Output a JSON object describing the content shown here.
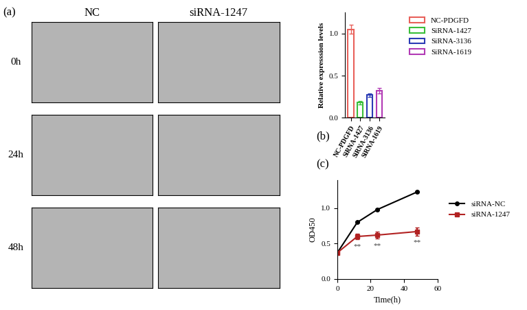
{
  "figure_a": {
    "label": "(a)",
    "columns": [
      "NC",
      "siRNA-1247"
    ],
    "rows": [
      "0h",
      "24h",
      "48h"
    ]
  },
  "chart_data": [
    {
      "type": "bar",
      "label": "(b)",
      "categories": [
        "NC-PDGFD",
        "SiRNA-1427",
        "SiRNA-3136",
        "SiRNA-1619"
      ],
      "values": [
        1.05,
        0.18,
        0.27,
        0.32
      ],
      "errors": [
        0.05,
        0.02,
        0.02,
        0.03
      ],
      "colors": [
        "#e8605a",
        "#3bbf3b",
        "#2b3bb5",
        "#b23ab5"
      ],
      "y_label": "Relative expresssion levels",
      "ylim": [
        0,
        1.25
      ],
      "yticks": [
        {
          "value": 0,
          "label": "0.0"
        },
        {
          "value": 0.5,
          "label": "0.5"
        },
        {
          "value": 1,
          "label": "1.0"
        }
      ],
      "legend": "upper left"
    },
    {
      "type": "line",
      "label": "(c)",
      "x": [
        0,
        12,
        24,
        48
      ],
      "series": [
        {
          "name": "siRNA-NC",
          "color": "#000000",
          "marker": "circle",
          "values": [
            0.37,
            0.8,
            0.98,
            1.23
          ],
          "errors": [
            0,
            0.01,
            0.01,
            0.01
          ]
        },
        {
          "name": "siRNA-1247",
          "color": "#b22222",
          "marker": "square",
          "values": [
            0.37,
            0.6,
            0.62,
            0.67
          ],
          "errors": [
            0,
            0.04,
            0.05,
            0.06
          ],
          "annotations": [
            null,
            "**",
            "**",
            "**"
          ]
        }
      ],
      "x_label": "Time(h)",
      "y_label": "OD450",
      "xlim": [
        0,
        60
      ],
      "xticks": [
        0,
        20,
        40,
        60
      ],
      "ylim": [
        0,
        1.4
      ],
      "yticks": [
        {
          "value": 0,
          "label": "0.0"
        },
        {
          "value": 0.5,
          "label": "0.5"
        },
        {
          "value": 1,
          "label": "1.0"
        }
      ],
      "legend": "center left"
    }
  ]
}
